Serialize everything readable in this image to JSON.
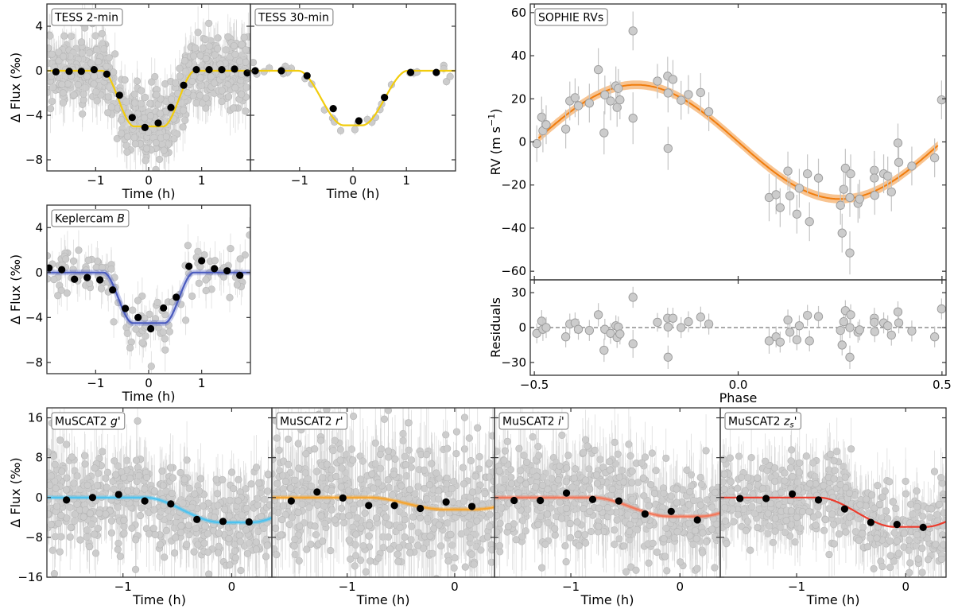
{
  "chart_data": [
    {
      "id": "tess2",
      "type": "scatter",
      "label": "TESS 2-min",
      "xlabel": "Time (h)",
      "ylabel": "Δ Flux (‰)",
      "xlim": [
        -1.92,
        1.92
      ],
      "ylim": [
        -9,
        6
      ],
      "xticks": [
        -1,
        0,
        1
      ],
      "yticks": [
        4,
        0,
        -4,
        -8
      ],
      "model_color": "#f2cc0c",
      "model": {
        "depth": 5.0,
        "t14": 1.75,
        "t12": 0.6
      },
      "raw_points": {
        "n": 700,
        "scatter": 1.6,
        "errbar": 1.8
      },
      "binned": [
        {
          "x": -1.75,
          "y": -0.1
        },
        {
          "x": -1.5,
          "y": -0.05
        },
        {
          "x": -1.27,
          "y": -0.05
        },
        {
          "x": -1.03,
          "y": 0.1
        },
        {
          "x": -0.79,
          "y": -0.3
        },
        {
          "x": -0.55,
          "y": -2.2
        },
        {
          "x": -0.31,
          "y": -4.2
        },
        {
          "x": -0.07,
          "y": -5.1
        },
        {
          "x": 0.18,
          "y": -4.7
        },
        {
          "x": 0.42,
          "y": -3.3
        },
        {
          "x": 0.66,
          "y": -1.3
        },
        {
          "x": 0.9,
          "y": 0.1
        },
        {
          "x": 1.14,
          "y": 0.1
        },
        {
          "x": 1.38,
          "y": 0.1
        },
        {
          "x": 1.62,
          "y": 0.15
        },
        {
          "x": 1.86,
          "y": -0.2
        }
      ]
    },
    {
      "id": "tess30",
      "type": "scatter",
      "label": "TESS 30-min",
      "xlabel": "Time (h)",
      "ylabel": "",
      "xlim": [
        -1.92,
        1.92
      ],
      "ylim": [
        -9,
        6
      ],
      "xticks": [
        -1,
        0,
        1
      ],
      "yticks": [
        4,
        0,
        -4,
        -8
      ],
      "model_color": "#f2cc0c",
      "model": {
        "depth": 4.9,
        "t14": 2.05,
        "t12": 0.85
      },
      "raw_points": {
        "n": 34,
        "scatter": 0.35,
        "errbar": 0.4
      },
      "binned": [
        {
          "x": -1.83,
          "y": 0.0
        },
        {
          "x": -1.34,
          "y": 0.0
        },
        {
          "x": -0.86,
          "y": -0.45
        },
        {
          "x": -0.37,
          "y": -3.4
        },
        {
          "x": 0.11,
          "y": -4.5
        },
        {
          "x": 0.59,
          "y": -2.4
        },
        {
          "x": 1.08,
          "y": -0.15
        },
        {
          "x": 1.56,
          "y": -0.15
        }
      ]
    },
    {
      "id": "kepler",
      "type": "scatter",
      "label": "Keplercam",
      "label_italic": "B",
      "xlabel": "Time (h)",
      "ylabel": "Δ Flux (‰)",
      "xlim": [
        -1.92,
        1.92
      ],
      "ylim": [
        -9,
        6
      ],
      "xticks": [
        -1,
        0,
        1
      ],
      "yticks": [
        4,
        0,
        -4,
        -8
      ],
      "model_color": "#4a5bbf",
      "model": {
        "depth": 4.5,
        "t14": 1.7,
        "t12": 0.55
      },
      "raw_points": {
        "n": 130,
        "scatter": 1.4,
        "errbar": 1.5
      },
      "binned": [
        {
          "x": -1.88,
          "y": 0.4
        },
        {
          "x": -1.64,
          "y": 0.25
        },
        {
          "x": -1.4,
          "y": -0.6
        },
        {
          "x": -1.16,
          "y": -0.45
        },
        {
          "x": -0.92,
          "y": -0.65
        },
        {
          "x": -0.68,
          "y": -1.55
        },
        {
          "x": -0.44,
          "y": -3.2
        },
        {
          "x": -0.2,
          "y": -4.0
        },
        {
          "x": 0.04,
          "y": -5.0
        },
        {
          "x": 0.28,
          "y": -3.15
        },
        {
          "x": 0.52,
          "y": -2.2
        },
        {
          "x": 0.76,
          "y": 0.55
        },
        {
          "x": 1.0,
          "y": 1.05
        },
        {
          "x": 1.24,
          "y": 0.35
        },
        {
          "x": 1.48,
          "y": 0.15
        },
        {
          "x": 1.72,
          "y": -0.25
        }
      ]
    },
    {
      "id": "rv",
      "type": "scatter",
      "label": "SOPHIE RVs",
      "xlabel": "Phase",
      "ylabel": "RV (m s⁻¹)",
      "xlim": [
        -0.51,
        0.51
      ],
      "ylim": [
        -64,
        64
      ],
      "xticks": [
        -0.5,
        0.0,
        0.5
      ],
      "yticks": [
        60,
        40,
        20,
        0,
        -20,
        -40,
        -60
      ],
      "model_color": "#f07c0c",
      "model": {
        "K": 26.5,
        "phase0": -0.25,
        "band": 2.0
      },
      "points": [
        {
          "x": -0.494,
          "y": -0.8,
          "e": 8.5,
          "r": -5
        },
        {
          "x": -0.482,
          "y": 11.5,
          "e": 9.5,
          "r": 5.5
        },
        {
          "x": -0.479,
          "y": 5.2,
          "e": 10,
          "r": -1.5
        },
        {
          "x": -0.471,
          "y": 8.0,
          "e": 9,
          "r": 0
        },
        {
          "x": -0.423,
          "y": 6.0,
          "e": 9,
          "r": -8
        },
        {
          "x": -0.413,
          "y": 19.0,
          "e": 9,
          "r": 3
        },
        {
          "x": -0.4,
          "y": 20.5,
          "e": 9,
          "r": 4
        },
        {
          "x": -0.392,
          "y": 16.8,
          "e": 9,
          "r": -1.5
        },
        {
          "x": -0.365,
          "y": 18.0,
          "e": 9,
          "r": -2.5
        },
        {
          "x": -0.343,
          "y": 33.5,
          "e": 10,
          "r": 11
        },
        {
          "x": -0.329,
          "y": 4.2,
          "e": 10,
          "r": -19.5
        },
        {
          "x": -0.327,
          "y": 21.8,
          "e": 9,
          "r": -1.5
        },
        {
          "x": -0.313,
          "y": 19.0,
          "e": 9,
          "r": -5
        },
        {
          "x": -0.3,
          "y": 26.0,
          "e": 9,
          "r": 1.5
        },
        {
          "x": -0.297,
          "y": 16.0,
          "e": 9,
          "r": -8.5
        },
        {
          "x": -0.294,
          "y": 24.8,
          "e": 9,
          "r": 0.5
        },
        {
          "x": -0.29,
          "y": 19.5,
          "e": 9,
          "r": -5.5
        },
        {
          "x": -0.258,
          "y": 51.5,
          "e": 9,
          "r": 26
        },
        {
          "x": -0.258,
          "y": 11.0,
          "e": 12,
          "r": -14
        },
        {
          "x": -0.198,
          "y": 28.2,
          "e": 8,
          "r": 4.5
        },
        {
          "x": -0.173,
          "y": 30.5,
          "e": 9,
          "r": 8
        },
        {
          "x": -0.172,
          "y": 22.7,
          "e": 9,
          "r": 0.5
        },
        {
          "x": -0.172,
          "y": -3.0,
          "e": 10,
          "r": -25.5
        },
        {
          "x": -0.16,
          "y": 29.0,
          "e": 9,
          "r": 8
        },
        {
          "x": -0.14,
          "y": 19.3,
          "e": 9,
          "r": 0
        },
        {
          "x": -0.122,
          "y": 22.0,
          "e": 9,
          "r": 5
        },
        {
          "x": -0.092,
          "y": 22.9,
          "e": 9,
          "r": 9
        },
        {
          "x": -0.072,
          "y": 14.0,
          "e": 9,
          "r": 3
        },
        {
          "x": 0.076,
          "y": -25.8,
          "e": 11,
          "r": -11.5
        },
        {
          "x": 0.093,
          "y": -24.5,
          "e": 9,
          "r": -8
        },
        {
          "x": 0.103,
          "y": -30.5,
          "e": 9,
          "r": -12.5
        },
        {
          "x": 0.122,
          "y": -13.5,
          "e": 9,
          "r": 6.5
        },
        {
          "x": 0.127,
          "y": -25.0,
          "e": 9,
          "r": -4
        },
        {
          "x": 0.144,
          "y": -33.5,
          "e": 9,
          "r": -10.5
        },
        {
          "x": 0.15,
          "y": -21.5,
          "e": 9,
          "r": 1.5
        },
        {
          "x": 0.17,
          "y": -14.8,
          "e": 9,
          "r": 10.5
        },
        {
          "x": 0.175,
          "y": -37.0,
          "e": 9,
          "r": -11.5
        },
        {
          "x": 0.197,
          "y": -16.8,
          "e": 9,
          "r": 9.5
        },
        {
          "x": 0.251,
          "y": -29.4,
          "e": 9,
          "r": -2.5
        },
        {
          "x": 0.255,
          "y": -42.3,
          "e": 9,
          "r": -15
        },
        {
          "x": 0.259,
          "y": -22.0,
          "e": 9,
          "r": 5
        },
        {
          "x": 0.263,
          "y": -12.2,
          "e": 9,
          "r": 14.5
        },
        {
          "x": 0.274,
          "y": -25.8,
          "e": 9,
          "r": 0
        },
        {
          "x": 0.274,
          "y": -51.5,
          "e": 10,
          "r": -25.5
        },
        {
          "x": 0.276,
          "y": -14.8,
          "e": 9,
          "r": 11
        },
        {
          "x": 0.294,
          "y": -28.5,
          "e": 9,
          "r": -4
        },
        {
          "x": 0.298,
          "y": -26.5,
          "e": 9,
          "r": -2
        },
        {
          "x": 0.334,
          "y": -13.2,
          "e": 9,
          "r": 8
        },
        {
          "x": 0.334,
          "y": -16.8,
          "e": 9,
          "r": 4.5
        },
        {
          "x": 0.335,
          "y": -24.8,
          "e": 9,
          "r": -3.5
        },
        {
          "x": 0.357,
          "y": -14.8,
          "e": 9,
          "r": 4
        },
        {
          "x": 0.367,
          "y": -15.8,
          "e": 9,
          "r": 1.5
        },
        {
          "x": 0.376,
          "y": -23.2,
          "e": 9,
          "r": -6.5
        },
        {
          "x": 0.392,
          "y": -0.5,
          "e": 9,
          "r": 13.5
        },
        {
          "x": 0.394,
          "y": -9.5,
          "e": 9,
          "r": 4
        },
        {
          "x": 0.426,
          "y": -11.2,
          "e": 9,
          "r": -3
        },
        {
          "x": 0.482,
          "y": -7.4,
          "e": 9,
          "r": -8
        },
        {
          "x": 0.499,
          "y": 19.5,
          "e": 9,
          "r": 16
        }
      ]
    },
    {
      "id": "resid",
      "type": "scatter",
      "label": "",
      "xlabel": "Phase",
      "ylabel": "Residuals",
      "xlim": [
        -0.51,
        0.51
      ],
      "ylim": [
        -41,
        41
      ],
      "xticks": [
        -0.5,
        0.0,
        0.5
      ],
      "xticklabels": [
        "−0.5",
        "0.0",
        "0.5"
      ],
      "yticks": [
        30,
        0,
        -30
      ],
      "zero_line": true
    },
    {
      "id": "g",
      "type": "scatter",
      "label": "MuSCAT2",
      "label_italic": "g",
      "label_suffix": "'",
      "xlabel": "Time (h)",
      "ylabel": "Δ Flux (‰)",
      "xlim": [
        -1.7,
        0.37
      ],
      "ylim": [
        -16,
        18
      ],
      "xticks": [
        -1,
        0
      ],
      "yticks": [
        16,
        8,
        0,
        -8,
        -16
      ],
      "model_color": "#4cc3f0",
      "model": {
        "depth": 5.0,
        "t1": -0.8,
        "t2": -0.1,
        "t3": 0.35
      },
      "raw_points": {
        "n": 560,
        "scatter": 4.6,
        "errbar": 6
      },
      "binned": [
        {
          "x": -1.52,
          "y": -0.5
        },
        {
          "x": -1.28,
          "y": 0.0
        },
        {
          "x": -1.04,
          "y": 0.6
        },
        {
          "x": -0.8,
          "y": -0.7
        },
        {
          "x": -0.56,
          "y": -1.3
        },
        {
          "x": -0.32,
          "y": -4.4
        },
        {
          "x": -0.08,
          "y": -4.8
        },
        {
          "x": 0.16,
          "y": -4.9
        }
      ]
    },
    {
      "id": "r",
      "type": "scatter",
      "label": "MuSCAT2",
      "label_italic": "r",
      "label_suffix": "'",
      "xlabel": "Time (h)",
      "ylabel": "",
      "xlim": [
        -1.7,
        0.37
      ],
      "ylim": [
        -16,
        18
      ],
      "xticks": [
        -1,
        0
      ],
      "yticks": [
        16,
        8,
        0,
        -8,
        -16
      ],
      "model_color": "#f5a530",
      "model": {
        "depth": 2.4,
        "t1": -0.8,
        "t2": -0.1,
        "t3": 0.35
      },
      "raw_points": {
        "n": 560,
        "scatter": 6.5,
        "errbar": 8
      },
      "binned": [
        {
          "x": -1.52,
          "y": -0.7
        },
        {
          "x": -1.28,
          "y": 1.1
        },
        {
          "x": -1.04,
          "y": -0.1
        },
        {
          "x": -0.8,
          "y": -1.6
        },
        {
          "x": -0.56,
          "y": -1.6
        },
        {
          "x": -0.32,
          "y": -2.2
        },
        {
          "x": -0.08,
          "y": -0.9
        },
        {
          "x": 0.16,
          "y": -1.8
        }
      ]
    },
    {
      "id": "i",
      "type": "scatter",
      "label": "MuSCAT2",
      "label_italic": "i",
      "label_suffix": "'",
      "xlabel": "Time (h)",
      "ylabel": "",
      "xlim": [
        -1.7,
        0.37
      ],
      "ylim": [
        -16,
        18
      ],
      "xticks": [
        -1,
        0
      ],
      "yticks": [
        16,
        8,
        0,
        -8,
        -16
      ],
      "model_color": "#f3775a",
      "model": {
        "depth": 3.8,
        "t1": -0.8,
        "t2": -0.1,
        "t3": 0.35
      },
      "raw_points": {
        "n": 560,
        "scatter": 5.0,
        "errbar": 6.5
      },
      "binned": [
        {
          "x": -1.52,
          "y": -0.6
        },
        {
          "x": -1.28,
          "y": -0.6
        },
        {
          "x": -1.04,
          "y": 0.9
        },
        {
          "x": -0.8,
          "y": -0.4
        },
        {
          "x": -0.56,
          "y": -0.7
        },
        {
          "x": -0.32,
          "y": -3.3
        },
        {
          "x": -0.08,
          "y": -2.8
        },
        {
          "x": 0.16,
          "y": -4.5
        }
      ]
    },
    {
      "id": "z",
      "type": "scatter",
      "label": "MuSCAT2",
      "label_italic": "z",
      "label_sub": "s",
      "label_suffix": "'",
      "xlabel": "Time (h)",
      "ylabel": "",
      "xlim": [
        -1.7,
        0.37
      ],
      "ylim": [
        -16,
        18
      ],
      "xticks": [
        -1,
        0
      ],
      "yticks": [
        16,
        8,
        0,
        -8,
        -16
      ],
      "model_color": "#ec3b2c",
      "model": {
        "depth": 5.9,
        "t1": -0.8,
        "t2": -0.1,
        "t3": 0.35
      },
      "raw_points": {
        "n": 560,
        "scatter": 4.0,
        "errbar": 5.5
      },
      "binned": [
        {
          "x": -1.52,
          "y": -0.2
        },
        {
          "x": -1.28,
          "y": -0.2
        },
        {
          "x": -1.04,
          "y": 0.7
        },
        {
          "x": -0.8,
          "y": -0.5
        },
        {
          "x": -0.56,
          "y": -2.3
        },
        {
          "x": -0.32,
          "y": -5.0
        },
        {
          "x": -0.08,
          "y": -5.4
        },
        {
          "x": 0.16,
          "y": -6.0
        }
      ]
    }
  ]
}
